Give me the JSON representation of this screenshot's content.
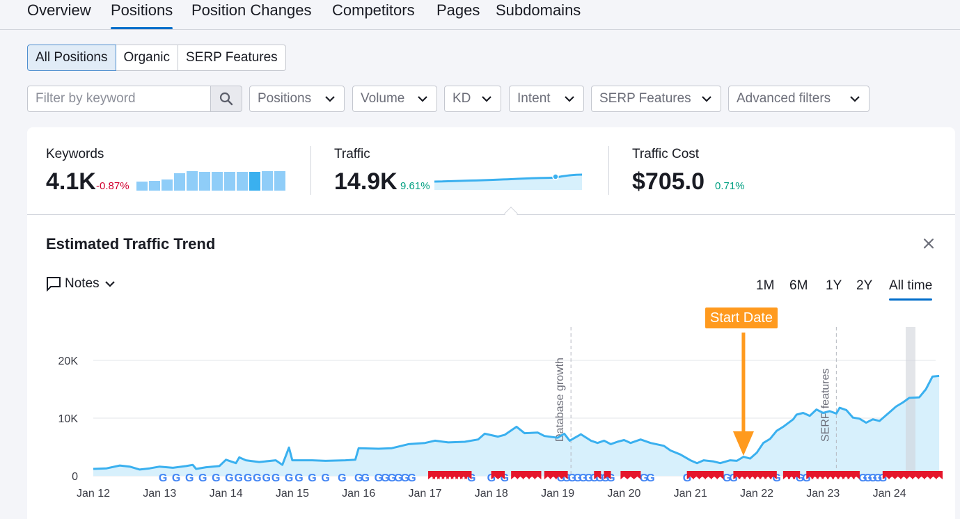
{
  "tabs": [
    "Overview",
    "Positions",
    "Position Changes",
    "Competitors",
    "Pages",
    "Subdomains"
  ],
  "segments": [
    "All Positions",
    "Organic",
    "SERP Features"
  ],
  "filter": {
    "placeholder": "Filter by keyword"
  },
  "dropdowns": [
    "Positions",
    "Volume",
    "KD",
    "Intent",
    "SERP Features",
    "Advanced filters"
  ],
  "metrics": {
    "keywords": {
      "label": "Keywords",
      "value": "4.1K",
      "change": "-0.87%"
    },
    "traffic": {
      "label": "Traffic",
      "value": "14.9K",
      "change": "9.61%"
    },
    "cost": {
      "label": "Traffic Cost",
      "value": "$705.0",
      "change": "0.71%"
    }
  },
  "trend": {
    "title": "Estimated Traffic Trend",
    "notes_label": "Notes",
    "ranges": [
      "1M",
      "6M",
      "1Y",
      "2Y",
      "All time"
    ],
    "active_range": "All time",
    "start_badge": "Start Date"
  },
  "colors": {
    "accent": "#006dca",
    "line": "#3ab0ef",
    "area": "#d7f0fc",
    "negative": "#d1002f",
    "positive": "#009f81",
    "badge": "#ff9a1e"
  },
  "chart_data": {
    "type": "area",
    "y_ticks": [
      "0",
      "10K",
      "20K"
    ],
    "ylim": [
      0,
      25000
    ],
    "x_labels": [
      "Jan 12",
      "Jan 13",
      "Jan 14",
      "Jan 15",
      "Jan 16",
      "Jan 17",
      "Jan 18",
      "Jan 19",
      "Jan 20",
      "Jan 21",
      "Jan 22",
      "Jan 23",
      "Jan 24"
    ],
    "xlim": [
      12,
      24.5
    ],
    "annotations": [
      {
        "label": "Database growth",
        "x": 19.2
      },
      {
        "label": "SERP features",
        "x": 23.2
      }
    ],
    "start_date_x": 21.8,
    "series": [
      {
        "points": [
          [
            12,
            1200
          ],
          [
            12.2,
            1300
          ],
          [
            12.4,
            1800
          ],
          [
            12.55,
            1600
          ],
          [
            12.7,
            1100
          ],
          [
            12.85,
            1300
          ],
          [
            13,
            1600
          ],
          [
            13.2,
            1400
          ],
          [
            13.4,
            1700
          ],
          [
            13.5,
            1900
          ],
          [
            13.55,
            1200
          ],
          [
            13.7,
            1500
          ],
          [
            13.9,
            1700
          ],
          [
            14,
            2800
          ],
          [
            14.15,
            2200
          ],
          [
            14.2,
            3200
          ],
          [
            14.3,
            2700
          ],
          [
            14.5,
            2400
          ],
          [
            14.75,
            2700
          ],
          [
            14.85,
            1900
          ],
          [
            14.95,
            4900
          ],
          [
            15,
            2700
          ],
          [
            15.3,
            2700
          ],
          [
            15.5,
            2600
          ],
          [
            15.8,
            2700
          ],
          [
            15.95,
            2800
          ],
          [
            16,
            4800
          ],
          [
            16.3,
            4700
          ],
          [
            16.5,
            4800
          ],
          [
            16.75,
            5500
          ],
          [
            17,
            5700
          ],
          [
            17.15,
            6100
          ],
          [
            17.35,
            5800
          ],
          [
            17.6,
            5900
          ],
          [
            17.8,
            6300
          ],
          [
            17.9,
            7300
          ],
          [
            18.1,
            6800
          ],
          [
            18.2,
            7100
          ],
          [
            18.38,
            8500
          ],
          [
            18.5,
            7400
          ],
          [
            18.7,
            7500
          ],
          [
            18.8,
            6900
          ],
          [
            19,
            6600
          ],
          [
            19.1,
            7300
          ],
          [
            19.18,
            6100
          ],
          [
            19.35,
            7200
          ],
          [
            19.5,
            6100
          ],
          [
            19.6,
            5700
          ],
          [
            19.7,
            6100
          ],
          [
            19.8,
            5500
          ],
          [
            19.9,
            5900
          ],
          [
            20,
            6200
          ],
          [
            20.1,
            5700
          ],
          [
            20.25,
            6300
          ],
          [
            20.4,
            5700
          ],
          [
            20.6,
            5200
          ],
          [
            20.7,
            4400
          ],
          [
            20.85,
            3700
          ],
          [
            21,
            2700
          ],
          [
            21.1,
            2200
          ],
          [
            21.2,
            2700
          ],
          [
            21.35,
            2500
          ],
          [
            21.45,
            2200
          ],
          [
            21.6,
            2700
          ],
          [
            21.7,
            2600
          ],
          [
            21.8,
            3300
          ],
          [
            21.9,
            3000
          ],
          [
            22,
            4000
          ],
          [
            22.1,
            5700
          ],
          [
            22.2,
            6400
          ],
          [
            22.3,
            7800
          ],
          [
            22.4,
            8500
          ],
          [
            22.55,
            9800
          ],
          [
            22.6,
            10600
          ],
          [
            22.7,
            10900
          ],
          [
            22.8,
            10400
          ],
          [
            22.9,
            11500
          ],
          [
            23,
            10900
          ],
          [
            23.1,
            11200
          ],
          [
            23.2,
            10800
          ],
          [
            23.25,
            11800
          ],
          [
            23.35,
            11400
          ],
          [
            23.45,
            10100
          ],
          [
            23.55,
            9900
          ],
          [
            23.65,
            9200
          ],
          [
            23.75,
            9800
          ],
          [
            23.85,
            9500
          ],
          [
            24,
            11000
          ],
          [
            24.1,
            12000
          ],
          [
            24.2,
            12700
          ],
          [
            24.3,
            13500
          ],
          [
            24.45,
            13600
          ],
          [
            24.55,
            15000
          ],
          [
            24.65,
            17200
          ],
          [
            24.75,
            17300
          ]
        ]
      }
    ]
  }
}
